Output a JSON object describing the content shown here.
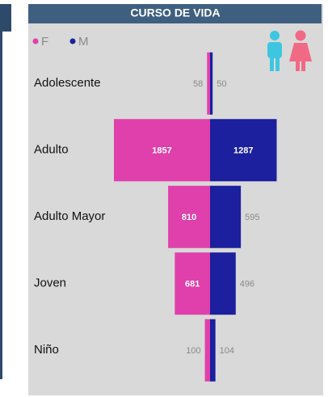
{
  "chart_data": {
    "type": "butterfly",
    "title": "CURSO DE VIDA",
    "categories": [
      "Adolescente",
      "Adulto",
      "Adulto Mayor",
      "Joven",
      "Niño"
    ],
    "series": [
      {
        "name": "F",
        "color": "#e040ab",
        "values": [
          58,
          1857,
          810,
          681,
          100
        ]
      },
      {
        "name": "M",
        "color": "#1c1f9e",
        "values": [
          50,
          1287,
          595,
          496,
          104
        ]
      }
    ]
  }
}
